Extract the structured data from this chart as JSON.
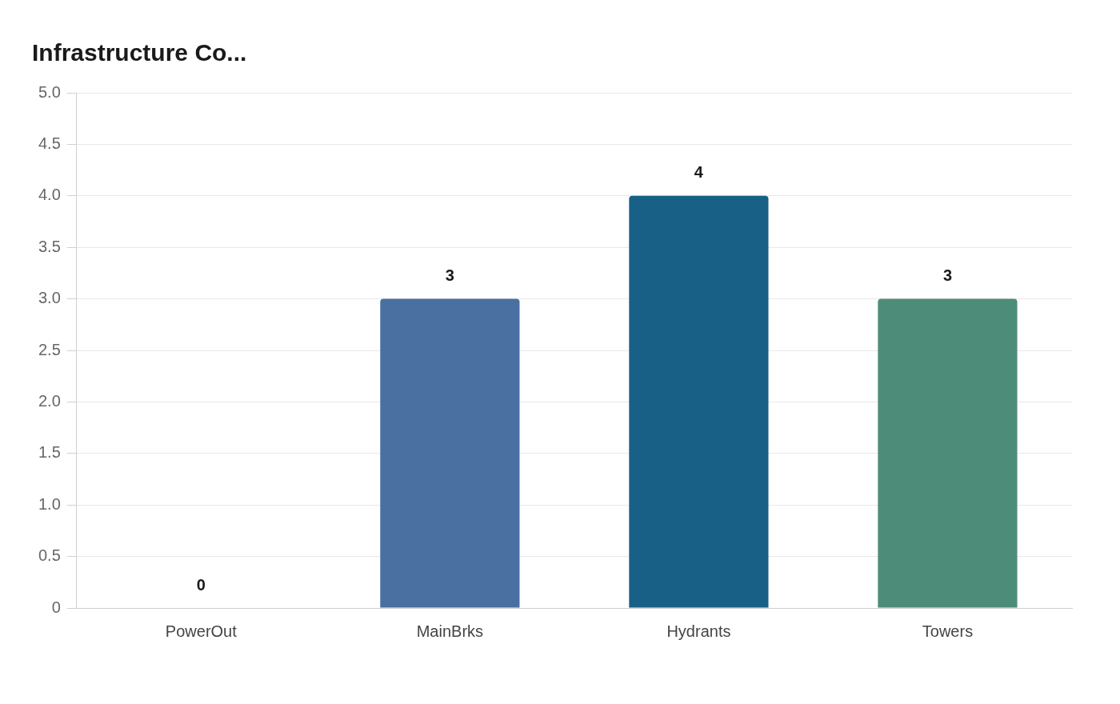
{
  "chart_data": {
    "type": "bar",
    "title": "Infrastructure Co...",
    "categories": [
      "PowerOut",
      "MainBrks",
      "Hydrants",
      "Towers"
    ],
    "values": [
      0,
      3,
      4,
      3
    ],
    "colors": [
      "#4a6fa1",
      "#4a6fa1",
      "#186086",
      "#4e8c7a"
    ],
    "ylim": [
      0,
      5
    ],
    "yticks": [
      {
        "value": 0,
        "label": "0"
      },
      0.5,
      {
        "value": 1,
        "label": "1.0"
      },
      1.5,
      {
        "value": 2,
        "label": "2.0"
      },
      2.5,
      {
        "value": 3,
        "label": "3.0"
      },
      3.5,
      {
        "value": 4,
        "label": "4.0"
      },
      4.5,
      {
        "value": 5,
        "label": "5.0"
      }
    ],
    "grid": "y",
    "legend": false,
    "data_labels": true
  }
}
